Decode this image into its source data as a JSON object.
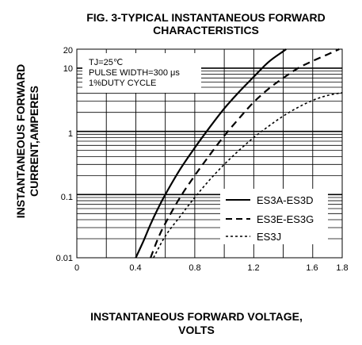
{
  "chart_data": {
    "type": "line",
    "title": [
      "FIG. 3-TYPICAL INSTANTANEOUS FORWARD",
      "CHARACTERISTICS"
    ],
    "xlabel": [
      "INSTANTANEOUS FORWARD VOLTAGE,",
      "VOLTS"
    ],
    "ylabel": [
      "INSTANTANEOUS FORWARD",
      "CURRENT,AMPERES"
    ],
    "x_scale": "linear",
    "y_scale": "log",
    "xlim": [
      0,
      1.8
    ],
    "ylim": [
      0.01,
      20
    ],
    "x_ticks": [
      "0",
      "0.4",
      "0.8",
      "1.2",
      "1.6",
      "1.8"
    ],
    "y_ticks": [
      "0.01",
      "0.1",
      "1",
      "10",
      "20"
    ],
    "grid": true,
    "legend_position": "bottom-right",
    "annotation": [
      "TJ=25℃",
      "PULSE WIDTH=300 μs",
      "1%DUTY CYCLE"
    ],
    "series": [
      {
        "name": "ES3A-ES3D",
        "style": "solid",
        "x": [
          0.4,
          0.45,
          0.5,
          0.55,
          0.6,
          0.7,
          0.8,
          0.9,
          1.0,
          1.1,
          1.2,
          1.3,
          1.4,
          1.42
        ],
        "y": [
          0.01,
          0.018,
          0.034,
          0.06,
          0.1,
          0.25,
          0.55,
          1.15,
          2.3,
          4.2,
          7.3,
          12.5,
          18.5,
          20
        ]
      },
      {
        "name": "ES3E-ES3G",
        "style": "dashed",
        "x": [
          0.5,
          0.55,
          0.6,
          0.7,
          0.8,
          0.9,
          1.0,
          1.1,
          1.2,
          1.3,
          1.4,
          1.5,
          1.6,
          1.7,
          1.78
        ],
        "y": [
          0.01,
          0.02,
          0.035,
          0.09,
          0.2,
          0.42,
          0.85,
          1.6,
          2.9,
          4.7,
          7.0,
          10.0,
          13.0,
          16.5,
          20
        ]
      },
      {
        "name": "ES3J",
        "style": "dotted",
        "x": [
          0.52,
          0.6,
          0.7,
          0.8,
          0.9,
          1.0,
          1.1,
          1.2,
          1.3,
          1.4,
          1.5,
          1.6,
          1.7,
          1.8
        ],
        "y": [
          0.01,
          0.022,
          0.045,
          0.09,
          0.17,
          0.3,
          0.5,
          0.8,
          1.2,
          1.75,
          2.4,
          3.1,
          3.7,
          4.1
        ]
      }
    ]
  }
}
